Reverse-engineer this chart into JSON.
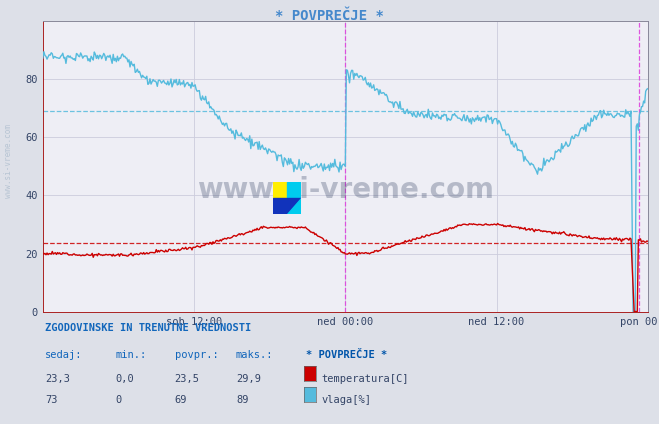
{
  "title": "* POVPREČJE *",
  "title_color": "#4488cc",
  "bg_color": "#dde0e8",
  "plot_bg_color": "#eeeef5",
  "ylim": [
    0,
    100
  ],
  "xlim": [
    0,
    576
  ],
  "xtick_positions": [
    144,
    288,
    432,
    576
  ],
  "xtick_labels": [
    "sob 12:00",
    "ned 00:00",
    "ned 12:00",
    "pon 00:00"
  ],
  "ytick_positions": [
    0,
    20,
    40,
    60,
    80
  ],
  "grid_color": "#ccccdd",
  "vline_positions": [
    288,
    568
  ],
  "vline_color": "#dd44dd",
  "temp_avg": 23.5,
  "temp_color": "#cc0000",
  "humidity_avg": 69,
  "humidity_color": "#55bbdd",
  "watermark_text": "www.si-vreme.com",
  "watermark_color": "#223355",
  "watermark_alpha": 0.28,
  "legend_title": "* POVPREČJE *",
  "legend_title_color": "#0055aa",
  "table_header": [
    "sedaj:",
    "min.:",
    "povpr.:",
    "maks.:"
  ],
  "temp_row": [
    "23,3",
    "0,0",
    "23,5",
    "29,9"
  ],
  "humidity_row": [
    "73",
    "0",
    "69",
    "89"
  ],
  "table_label_header": "ZGODOVINSKE IN TRENUTNE VREDNOSTI",
  "temp_label": "temperatura[C]",
  "humidity_label": "vlaga[%]",
  "side_text": "www.si-vreme.com"
}
